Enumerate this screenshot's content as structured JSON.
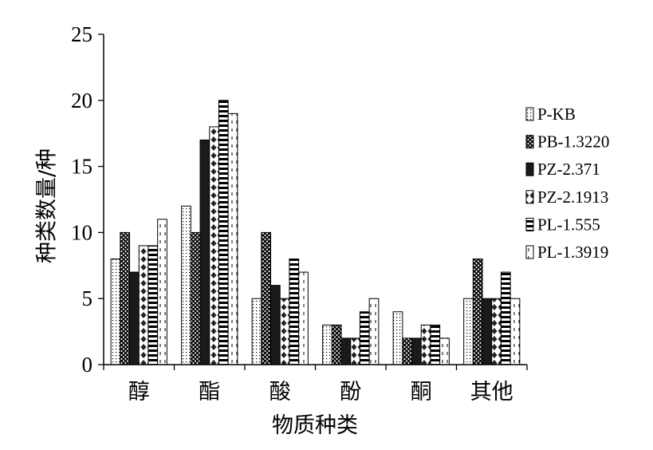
{
  "chart_data": {
    "type": "bar",
    "title": "",
    "xlabel": "物质种类",
    "ylabel": "种类数量/种",
    "ylim": [
      0,
      25
    ],
    "yticks": [
      0,
      5,
      10,
      15,
      20,
      25
    ],
    "grid": false,
    "legend_position": "right",
    "categories": [
      "醇",
      "酯",
      "酸",
      "酚",
      "酮",
      "其他"
    ],
    "series": [
      {
        "name": "P-KB",
        "values": [
          8,
          12,
          5,
          3,
          4,
          5
        ],
        "pattern": "dots"
      },
      {
        "name": "PB-1.3220",
        "values": [
          10,
          10,
          10,
          3,
          2,
          8
        ],
        "pattern": "crosshatch"
      },
      {
        "name": "PZ-2.371",
        "values": [
          7,
          17,
          6,
          2,
          2,
          5
        ],
        "pattern": "solid"
      },
      {
        "name": "PZ-2.1913",
        "values": [
          9,
          18,
          5,
          2,
          3,
          5
        ],
        "pattern": "diamonds"
      },
      {
        "name": "PL-1.555",
        "values": [
          9,
          20,
          8,
          4,
          3,
          7
        ],
        "pattern": "hstripes"
      },
      {
        "name": "PL-1.3919",
        "values": [
          11,
          19,
          7,
          5,
          2,
          5
        ],
        "pattern": "dashes"
      }
    ]
  }
}
